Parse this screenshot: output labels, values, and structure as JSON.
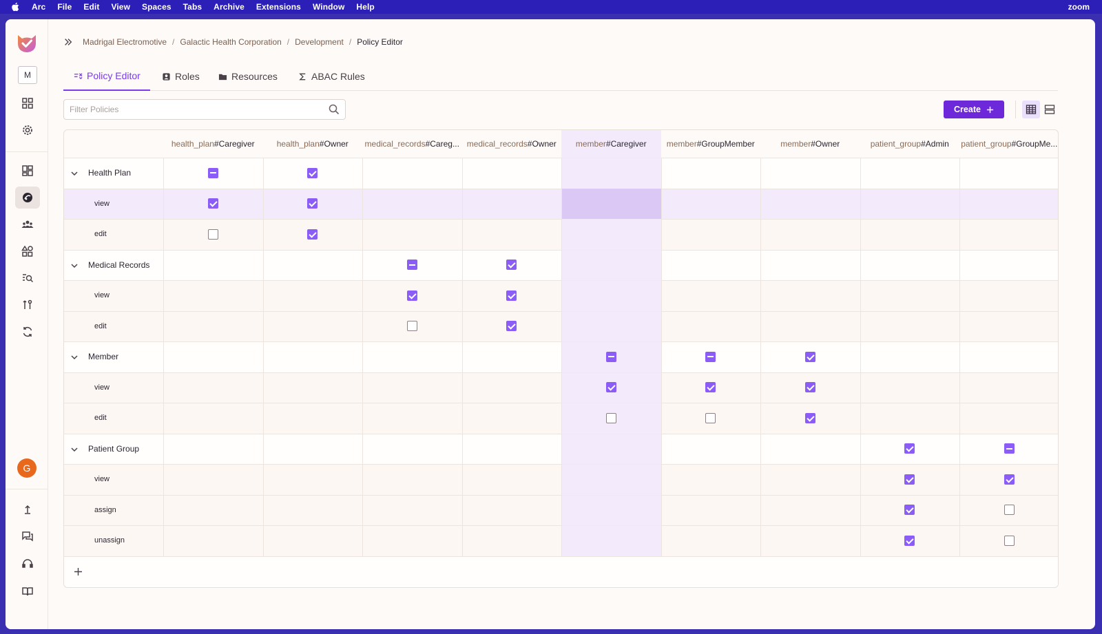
{
  "menubar": {
    "app": "Arc",
    "items": [
      "File",
      "Edit",
      "View",
      "Spaces",
      "Tabs",
      "Archive",
      "Extensions",
      "Window",
      "Help"
    ],
    "right": "zoom"
  },
  "sidebar": {
    "workspace_letter": "M",
    "avatar_letter": "G",
    "icons": [
      "dashboard-icon",
      "settings-icon",
      "projects-icon",
      "policy-icon",
      "users-icon",
      "shapes-icon",
      "audit-search-icon",
      "opal-icon",
      "sync-icon",
      "upload-icon",
      "chat-icon",
      "support-icon",
      "docs-icon"
    ]
  },
  "breadcrumb": {
    "items": [
      "Madrigal Electromotive",
      "Galactic Health Corporation",
      "Development"
    ],
    "current": "Policy Editor"
  },
  "tabs": [
    {
      "label": "Policy Editor",
      "icon": "policy-editor-icon",
      "active": true
    },
    {
      "label": "Roles",
      "icon": "roles-icon",
      "active": false
    },
    {
      "label": "Resources",
      "icon": "folder-icon",
      "active": false
    },
    {
      "label": "ABAC Rules",
      "icon": "sigma-icon",
      "active": false
    }
  ],
  "filter": {
    "placeholder": "Filter Policies",
    "value": ""
  },
  "create_button": "Create",
  "columns": [
    {
      "res": "health_plan",
      "role": "Caregiver"
    },
    {
      "res": "health_plan",
      "role": "Owner"
    },
    {
      "res": "medical_records",
      "role": "Careg..."
    },
    {
      "res": "medical_records",
      "role": "Owner"
    },
    {
      "res": "member",
      "role": "Caregiver"
    },
    {
      "res": "member",
      "role": "GroupMember"
    },
    {
      "res": "member",
      "role": "Owner"
    },
    {
      "res": "patient_group",
      "role": "Admin"
    },
    {
      "res": "patient_group",
      "role": "GroupMe..."
    }
  ],
  "groups": [
    {
      "name": "Health Plan",
      "state": [
        "ind",
        "on",
        null,
        null,
        null,
        null,
        null,
        null,
        null
      ],
      "actions": [
        {
          "name": "view",
          "state": [
            "on",
            "on",
            null,
            null,
            null,
            null,
            null,
            null,
            null
          ]
        },
        {
          "name": "edit",
          "state": [
            "off",
            "on",
            null,
            null,
            null,
            null,
            null,
            null,
            null
          ]
        }
      ]
    },
    {
      "name": "Medical Records",
      "state": [
        null,
        null,
        "ind",
        "on",
        null,
        null,
        null,
        null,
        null
      ],
      "actions": [
        {
          "name": "view",
          "state": [
            null,
            null,
            "on",
            "on",
            null,
            null,
            null,
            null,
            null
          ]
        },
        {
          "name": "edit",
          "state": [
            null,
            null,
            "off",
            "on",
            null,
            null,
            null,
            null,
            null
          ]
        }
      ]
    },
    {
      "name": "Member",
      "state": [
        null,
        null,
        null,
        null,
        "ind",
        "ind",
        "on",
        null,
        null
      ],
      "actions": [
        {
          "name": "view",
          "state": [
            null,
            null,
            null,
            null,
            "on",
            "on",
            "on",
            null,
            null
          ]
        },
        {
          "name": "edit",
          "state": [
            null,
            null,
            null,
            null,
            "off",
            "off",
            "on",
            null,
            null
          ]
        }
      ]
    },
    {
      "name": "Patient Group",
      "state": [
        null,
        null,
        null,
        null,
        null,
        null,
        null,
        "on",
        "ind"
      ],
      "actions": [
        {
          "name": "view",
          "state": [
            null,
            null,
            null,
            null,
            null,
            null,
            null,
            "on",
            "on"
          ]
        },
        {
          "name": "assign",
          "state": [
            null,
            null,
            null,
            null,
            null,
            null,
            null,
            "on",
            "off"
          ]
        },
        {
          "name": "unassign",
          "state": [
            null,
            null,
            null,
            null,
            null,
            null,
            null,
            "on",
            "off"
          ]
        }
      ]
    }
  ],
  "colors": {
    "accent": "#7c3aed",
    "button": "#6d28d9",
    "checkbox": "#8b5cf6",
    "menubar": "#2c1fb8"
  }
}
